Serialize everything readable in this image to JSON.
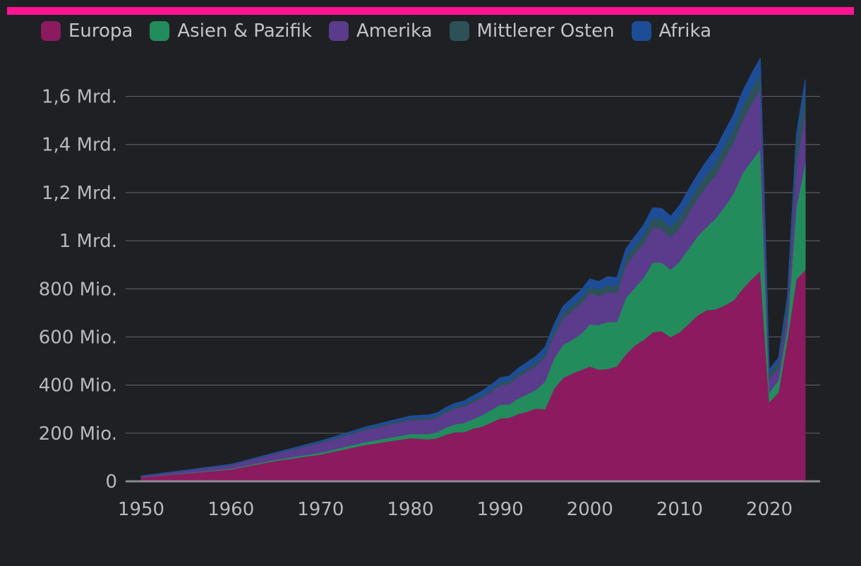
{
  "accent_color": "#ff1493",
  "chart_data": {
    "type": "area",
    "stacked": true,
    "title": "",
    "xlabel": "",
    "ylabel": "",
    "xlim": [
      1950,
      2024
    ],
    "ylim": [
      0,
      1760000000
    ],
    "grid": true,
    "legend_position": "top-left",
    "x_ticks": [
      1950,
      1960,
      1970,
      1980,
      1990,
      2000,
      2010,
      2020
    ],
    "x_tick_labels": [
      "1950",
      "1960",
      "1970",
      "1980",
      "1990",
      "2000",
      "2010",
      "2020"
    ],
    "y_ticks": [
      0,
      200000000,
      400000000,
      600000000,
      800000000,
      1000000000,
      1200000000,
      1400000000,
      1600000000
    ],
    "y_tick_labels": [
      "0",
      "200 Mio.",
      "400 Mio.",
      "600 Mio.",
      "800 Mio.",
      "1 Mrd.",
      "1,2 Mrd.",
      "1,4 Mrd.",
      "1,6 Mrd."
    ],
    "x": [
      1950,
      1960,
      1965,
      1970,
      1975,
      1980,
      1982,
      1983,
      1984,
      1985,
      1986,
      1987,
      1988,
      1989,
      1990,
      1991,
      1992,
      1993,
      1994,
      1995,
      1996,
      1997,
      1998,
      1999,
      2000,
      2001,
      2002,
      2003,
      2004,
      2005,
      2006,
      2007,
      2008,
      2009,
      2010,
      2011,
      2012,
      2013,
      2014,
      2015,
      2016,
      2017,
      2018,
      2019,
      2020,
      2021,
      2022,
      2023,
      2024
    ],
    "series": [
      {
        "name": "Europa",
        "color": "#8b1a5e",
        "values": [
          17,
          50,
          85,
          112,
          152,
          180,
          175,
          180,
          195,
          205,
          205,
          220,
          228,
          245,
          262,
          265,
          280,
          290,
          303,
          300,
          385,
          430,
          448,
          463,
          478,
          465,
          468,
          478,
          528,
          565,
          588,
          620,
          625,
          600,
          620,
          655,
          690,
          712,
          715,
          732,
          752,
          800,
          840,
          875,
          330,
          370,
          590,
          840,
          880
        ]
      },
      {
        "name": "Asien & Pazifik",
        "color": "#238c5c",
        "values": [
          1,
          3,
          5,
          8,
          12,
          17,
          22,
          25,
          30,
          33,
          38,
          40,
          48,
          52,
          57,
          55,
          65,
          72,
          78,
          115,
          125,
          138,
          140,
          150,
          175,
          185,
          195,
          185,
          235,
          240,
          260,
          290,
          285,
          280,
          295,
          312,
          330,
          345,
          378,
          410,
          445,
          480,
          492,
          505,
          40,
          50,
          50,
          300,
          450
        ]
      },
      {
        "name": "Amerika",
        "color": "#5a3b8c",
        "values": [
          4,
          15,
          25,
          40,
          50,
          58,
          60,
          60,
          62,
          65,
          68,
          70,
          72,
          75,
          80,
          85,
          90,
          95,
          98,
          100,
          95,
          110,
          120,
          125,
          130,
          120,
          125,
          120,
          135,
          140,
          142,
          145,
          140,
          135,
          140,
          150,
          155,
          170,
          180,
          200,
          210,
          220,
          235,
          250,
          60,
          50,
          60,
          180,
          200
        ]
      },
      {
        "name": "Mittlerer Osten",
        "color": "#2c5258",
        "values": [
          0.5,
          1,
          2,
          3,
          5,
          7,
          8,
          8,
          8,
          8,
          8,
          10,
          10,
          10,
          12,
          12,
          13,
          14,
          15,
          16,
          18,
          20,
          22,
          24,
          25,
          27,
          28,
          28,
          30,
          32,
          35,
          38,
          40,
          42,
          44,
          46,
          48,
          50,
          52,
          54,
          56,
          58,
          62,
          64,
          20,
          25,
          40,
          80,
          90
        ]
      },
      {
        "name": "Afrika",
        "color": "#1d4d96",
        "values": [
          0.5,
          2,
          3,
          5,
          7,
          10,
          11,
          12,
          13,
          14,
          15,
          16,
          18,
          19,
          20,
          21,
          22,
          24,
          26,
          27,
          29,
          30,
          31,
          33,
          34,
          34,
          35,
          36,
          38,
          40,
          42,
          44,
          45,
          45,
          48,
          50,
          52,
          54,
          56,
          58,
          60,
          62,
          64,
          65,
          15,
          18,
          25,
          40,
          50
        ]
      }
    ],
    "values_unit": "Mio."
  }
}
